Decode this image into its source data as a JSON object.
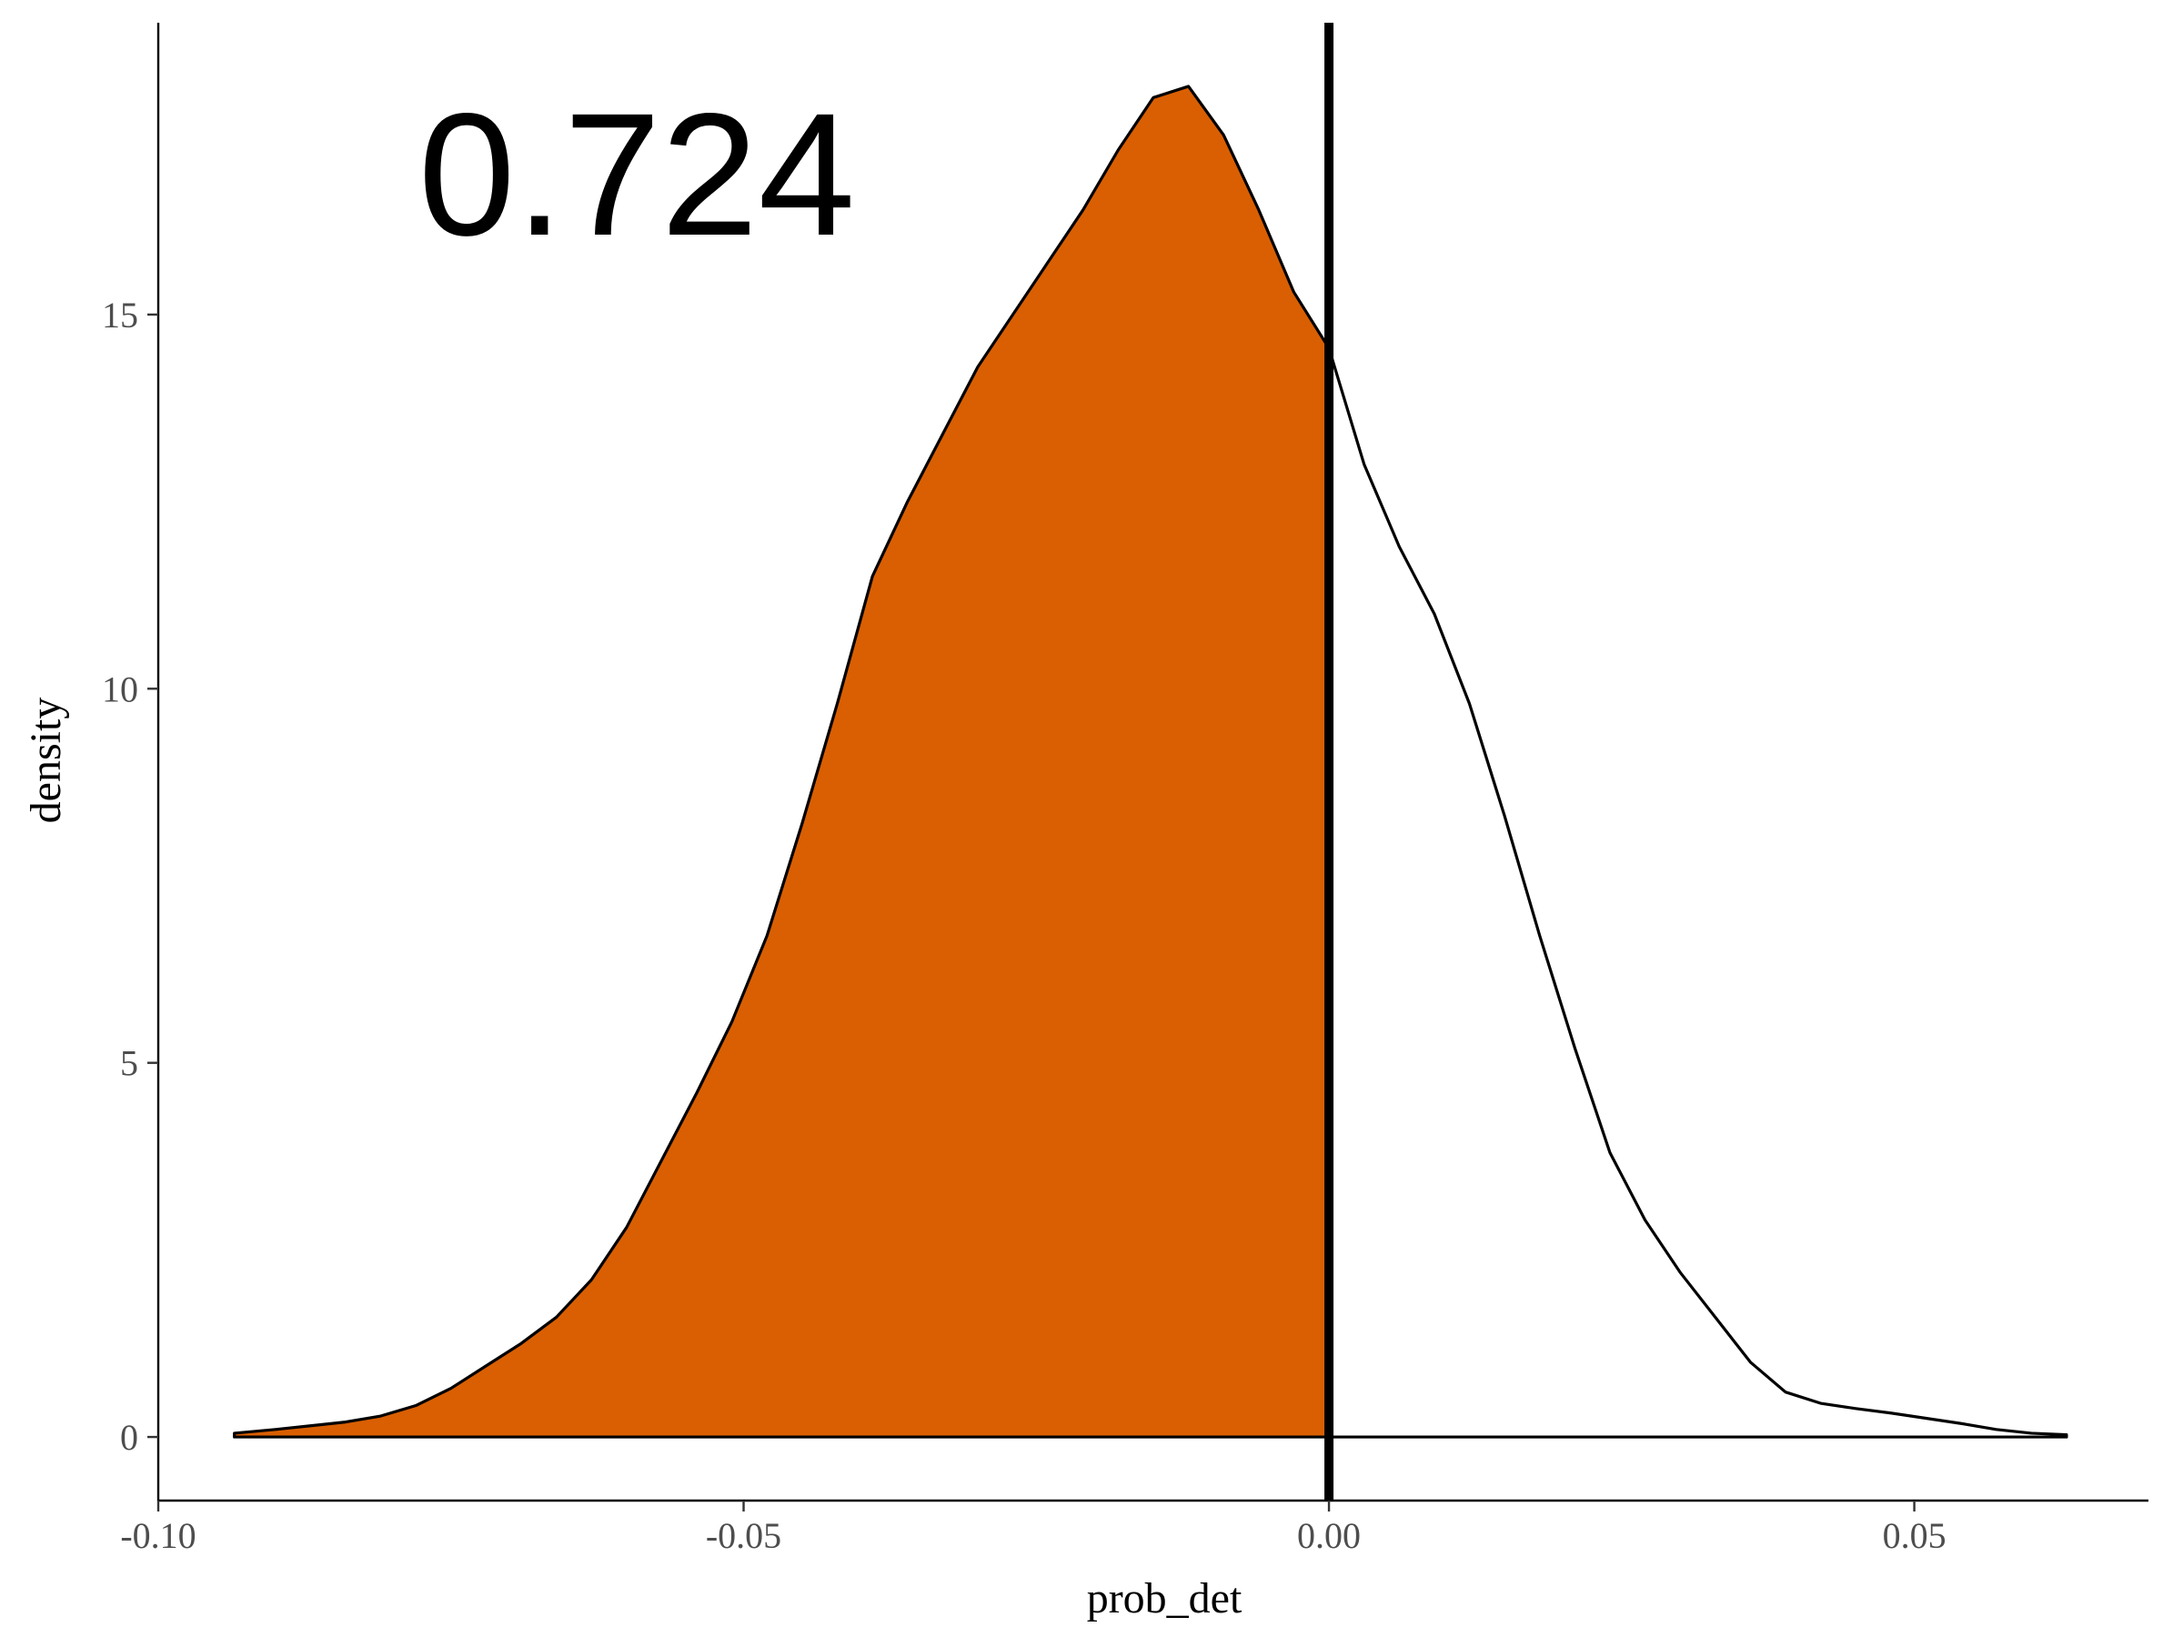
{
  "chart_data": {
    "type": "area",
    "title": "",
    "xlabel": "prob_det",
    "ylabel": "density",
    "xlim": [
      -0.1,
      0.07
    ],
    "ylim": [
      -0.85,
      18.9
    ],
    "x_ticks": [
      -0.1,
      -0.05,
      0.0,
      0.05
    ],
    "x_tick_labels": [
      "-0.10",
      "-0.05",
      "0.00",
      "0.05"
    ],
    "y_ticks": [
      0,
      5,
      10,
      15
    ],
    "y_tick_labels": [
      "0",
      "5",
      "10",
      "15"
    ],
    "grid": false,
    "legend": "none",
    "annotation": "0.724",
    "vline_x": 0.0,
    "fill_color": "#D95F02",
    "line_color": "#000000",
    "series": [
      {
        "x": [
          -0.0935,
          -0.09,
          -0.087,
          -0.084,
          -0.081,
          -0.078,
          -0.075,
          -0.072,
          -0.069,
          -0.066,
          -0.063,
          -0.06,
          -0.057,
          -0.054,
          -0.051,
          -0.048,
          -0.045,
          -0.042,
          -0.039,
          -0.036,
          -0.033,
          -0.03,
          -0.027,
          -0.024,
          -0.021,
          -0.018,
          -0.015,
          -0.012,
          -0.009,
          -0.006,
          -0.003,
          0.0,
          0.003,
          0.006,
          0.009,
          0.012,
          0.015,
          0.018,
          0.021,
          0.024,
          0.027,
          0.03,
          0.033,
          0.036,
          0.039,
          0.042,
          0.045,
          0.048,
          0.051,
          0.054,
          0.057,
          0.06,
          0.063
        ],
        "y": [
          0.05,
          0.1,
          0.15,
          0.2,
          0.28,
          0.42,
          0.65,
          0.95,
          1.25,
          1.6,
          2.1,
          2.8,
          3.7,
          4.6,
          5.55,
          6.7,
          8.2,
          9.8,
          11.5,
          12.5,
          13.4,
          14.3,
          15.0,
          15.7,
          16.4,
          17.2,
          17.9,
          18.05,
          17.4,
          16.4,
          15.3,
          14.55,
          13.0,
          11.9,
          11.0,
          9.8,
          8.3,
          6.7,
          5.2,
          3.8,
          2.9,
          2.2,
          1.6,
          1.0,
          0.6,
          0.45,
          0.38,
          0.32,
          0.25,
          0.18,
          0.1,
          0.05,
          0.03
        ]
      }
    ]
  }
}
